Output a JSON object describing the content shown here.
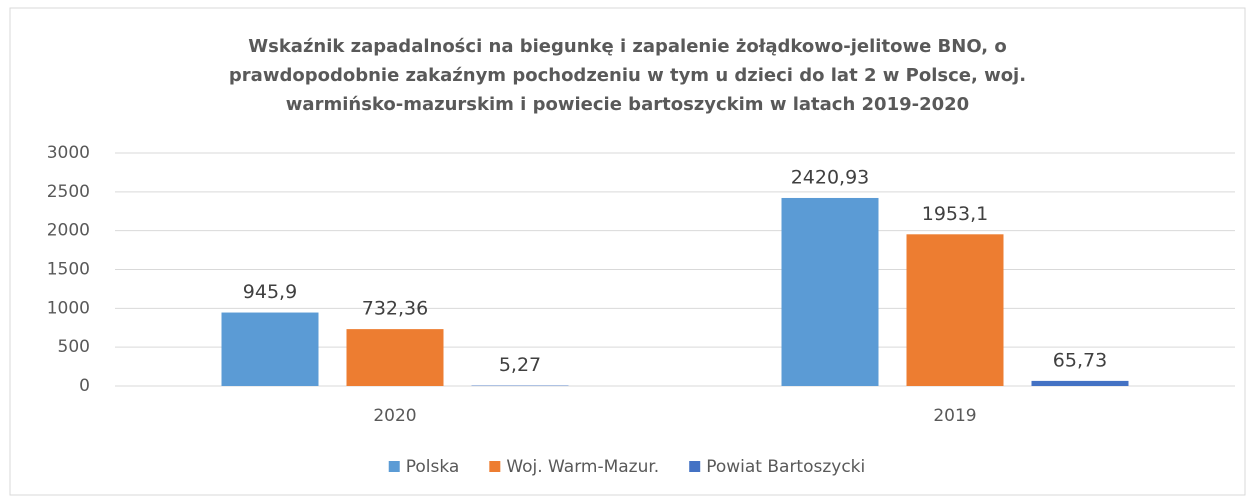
{
  "chart_data": {
    "type": "bar",
    "title": "Wskaźnik zapadalności na biegunkę i zapalenie żołądkowo-jelitowe BNO, o prawdopodobnie zakaźnym pochodzeniu w tym u dzieci do lat 2 w Polsce, woj. warmińsko-mazurskim i powiecie bartoszyckim w latach 2019-2020",
    "categories": [
      "2020",
      "2019"
    ],
    "series": [
      {
        "name": "Polska",
        "color": "#5b9bd5",
        "values": [
          945.9,
          2420.93
        ],
        "value_labels": [
          "945,9",
          "2420,93"
        ]
      },
      {
        "name": "Woj. Warm-Mazur.",
        "color": "#ed7d31",
        "values": [
          732.36,
          1953.1
        ],
        "value_labels": [
          "732,36",
          "1953,1"
        ]
      },
      {
        "name": "Powiat Bartoszycki",
        "color": "#4472c4",
        "values": [
          5.27,
          65.73
        ],
        "value_labels": [
          "5,27",
          "65,73"
        ]
      }
    ],
    "ylim": [
      0,
      3000
    ],
    "yticks": [
      0,
      500,
      1000,
      1500,
      2000,
      2500,
      3000
    ],
    "grid": true,
    "legend": "bottom"
  }
}
